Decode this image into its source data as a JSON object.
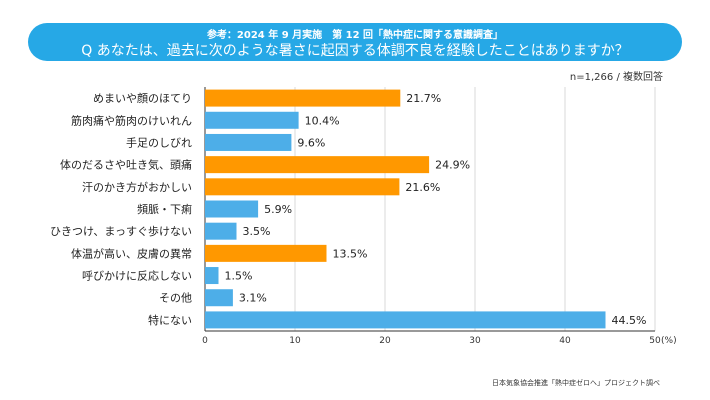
{
  "header": {
    "subtitle": "参考：2024 年 9 月実施　第 12 回「熱中症に関する意識調査」",
    "title": "Q あなたは、過去に次のような暑さに起因する体調不良を経験したことはありますか？"
  },
  "note": "n=1,266 / 複数回答",
  "source": "日本気象協会推進「熱中症ゼロへ」プロジェクト調べ",
  "colors": {
    "banner": "#26a8e6",
    "bar_orange": "#ff9800",
    "bar_blue": "#4daee8",
    "grid": "#d9d9d9",
    "axis": "#333333"
  },
  "chart_data": {
    "type": "bar",
    "orientation": "horizontal",
    "title": "Q あなたは、過去に次のような暑さに起因する体調不良を経験したことはありますか？",
    "categories": [
      "めまいや顔のほてり",
      "筋肉痛や筋肉のけいれん",
      "手足のしびれ",
      "体のだるさや吐き気、頭痛",
      "汗のかき方がおかしい",
      "頻脈・下痢",
      "ひきつけ、まっすぐ歩けない",
      "体温が高い、皮膚の異常",
      "呼びかけに反応しない",
      "その他",
      "特にない"
    ],
    "values": [
      21.7,
      10.4,
      9.6,
      24.9,
      21.6,
      5.9,
      3.5,
      13.5,
      1.5,
      3.1,
      44.5
    ],
    "value_labels": [
      "21.7%",
      "10.4%",
      "9.6%",
      "24.9%",
      "21.6%",
      "5.9%",
      "3.5%",
      "13.5%",
      "1.5%",
      "3.1%",
      "44.5%"
    ],
    "bar_colors": [
      "orange",
      "blue",
      "blue",
      "orange",
      "orange",
      "blue",
      "blue",
      "orange",
      "blue",
      "blue",
      "blue"
    ],
    "xlim": [
      0,
      50
    ],
    "xticks": [
      "0",
      "10",
      "20",
      "30",
      "40",
      "50"
    ],
    "x_unit": "(%)",
    "grid": true,
    "legend": "none"
  }
}
